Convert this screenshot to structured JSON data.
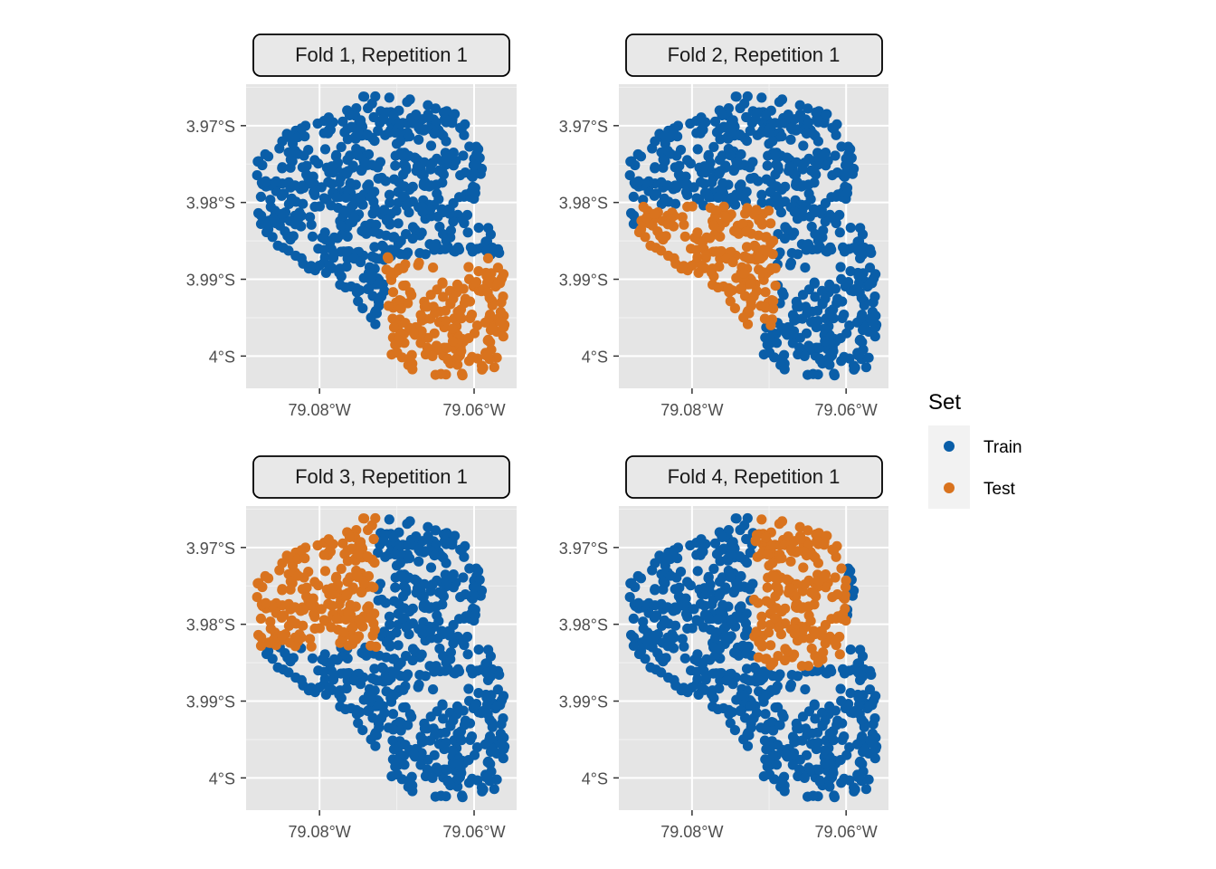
{
  "colors": {
    "train": "#0a5ea8",
    "test": "#d9731e",
    "panel_bg": "#e5e5e5",
    "strip_bg": "#e8e8e8",
    "grid": "#ffffff",
    "axis_text": "#4d4d4d"
  },
  "legend": {
    "title": "Set",
    "items": [
      {
        "label": "Train",
        "color": "#0a5ea8"
      },
      {
        "label": "Test",
        "color": "#d9731e"
      }
    ],
    "placement": "right"
  },
  "chart_data": [
    {
      "type": "scatter",
      "title": "Fold 1, Repetition 1",
      "x_ticks": [
        -79.08,
        -79.06
      ],
      "x_tick_labels": [
        "79.08°W",
        "79.06°W"
      ],
      "y_ticks": [
        -3.97,
        -3.98,
        -3.99,
        -4.0
      ],
      "y_tick_labels": [
        "3.97°S",
        "3.98°S",
        "3.99°S",
        "4°S"
      ],
      "xlim": [
        -79.0895,
        -79.0545
      ],
      "ylim": [
        -4.0042,
        -3.9646
      ],
      "test_region": "south-east",
      "series": [
        {
          "name": "Train"
        },
        {
          "name": "Test"
        }
      ]
    },
    {
      "type": "scatter",
      "title": "Fold 2, Repetition 1",
      "x_ticks": [
        -79.08,
        -79.06
      ],
      "x_tick_labels": [
        "79.08°W",
        "79.06°W"
      ],
      "y_ticks": [
        -3.97,
        -3.98,
        -3.99,
        -4.0
      ],
      "y_tick_labels": [
        "3.97°S",
        "3.98°S",
        "3.99°S",
        "4°S"
      ],
      "xlim": [
        -79.0895,
        -79.0545
      ],
      "ylim": [
        -4.0042,
        -3.9646
      ],
      "test_region": "south-west",
      "series": [
        {
          "name": "Train"
        },
        {
          "name": "Test"
        }
      ]
    },
    {
      "type": "scatter",
      "title": "Fold 3, Repetition 1",
      "x_ticks": [
        -79.08,
        -79.06
      ],
      "x_tick_labels": [
        "79.08°W",
        "79.06°W"
      ],
      "y_ticks": [
        -3.97,
        -3.98,
        -3.99,
        -4.0
      ],
      "y_tick_labels": [
        "3.97°S",
        "3.98°S",
        "3.99°S",
        "4°S"
      ],
      "xlim": [
        -79.0895,
        -79.0545
      ],
      "ylim": [
        -4.0042,
        -3.9646
      ],
      "test_region": "north-west",
      "series": [
        {
          "name": "Train"
        },
        {
          "name": "Test"
        }
      ]
    },
    {
      "type": "scatter",
      "title": "Fold 4, Repetition 1",
      "x_ticks": [
        -79.08,
        -79.06
      ],
      "x_tick_labels": [
        "79.08°W",
        "79.06°W"
      ],
      "y_ticks": [
        -3.97,
        -3.98,
        -3.99,
        -4.0
      ],
      "y_tick_labels": [
        "3.97°S",
        "3.98°S",
        "3.99°S",
        "4°S"
      ],
      "xlim": [
        -79.0895,
        -79.0545
      ],
      "ylim": [
        -4.0042,
        -3.9646
      ],
      "test_region": "north-east",
      "series": [
        {
          "name": "Train"
        },
        {
          "name": "Test"
        }
      ]
    }
  ]
}
